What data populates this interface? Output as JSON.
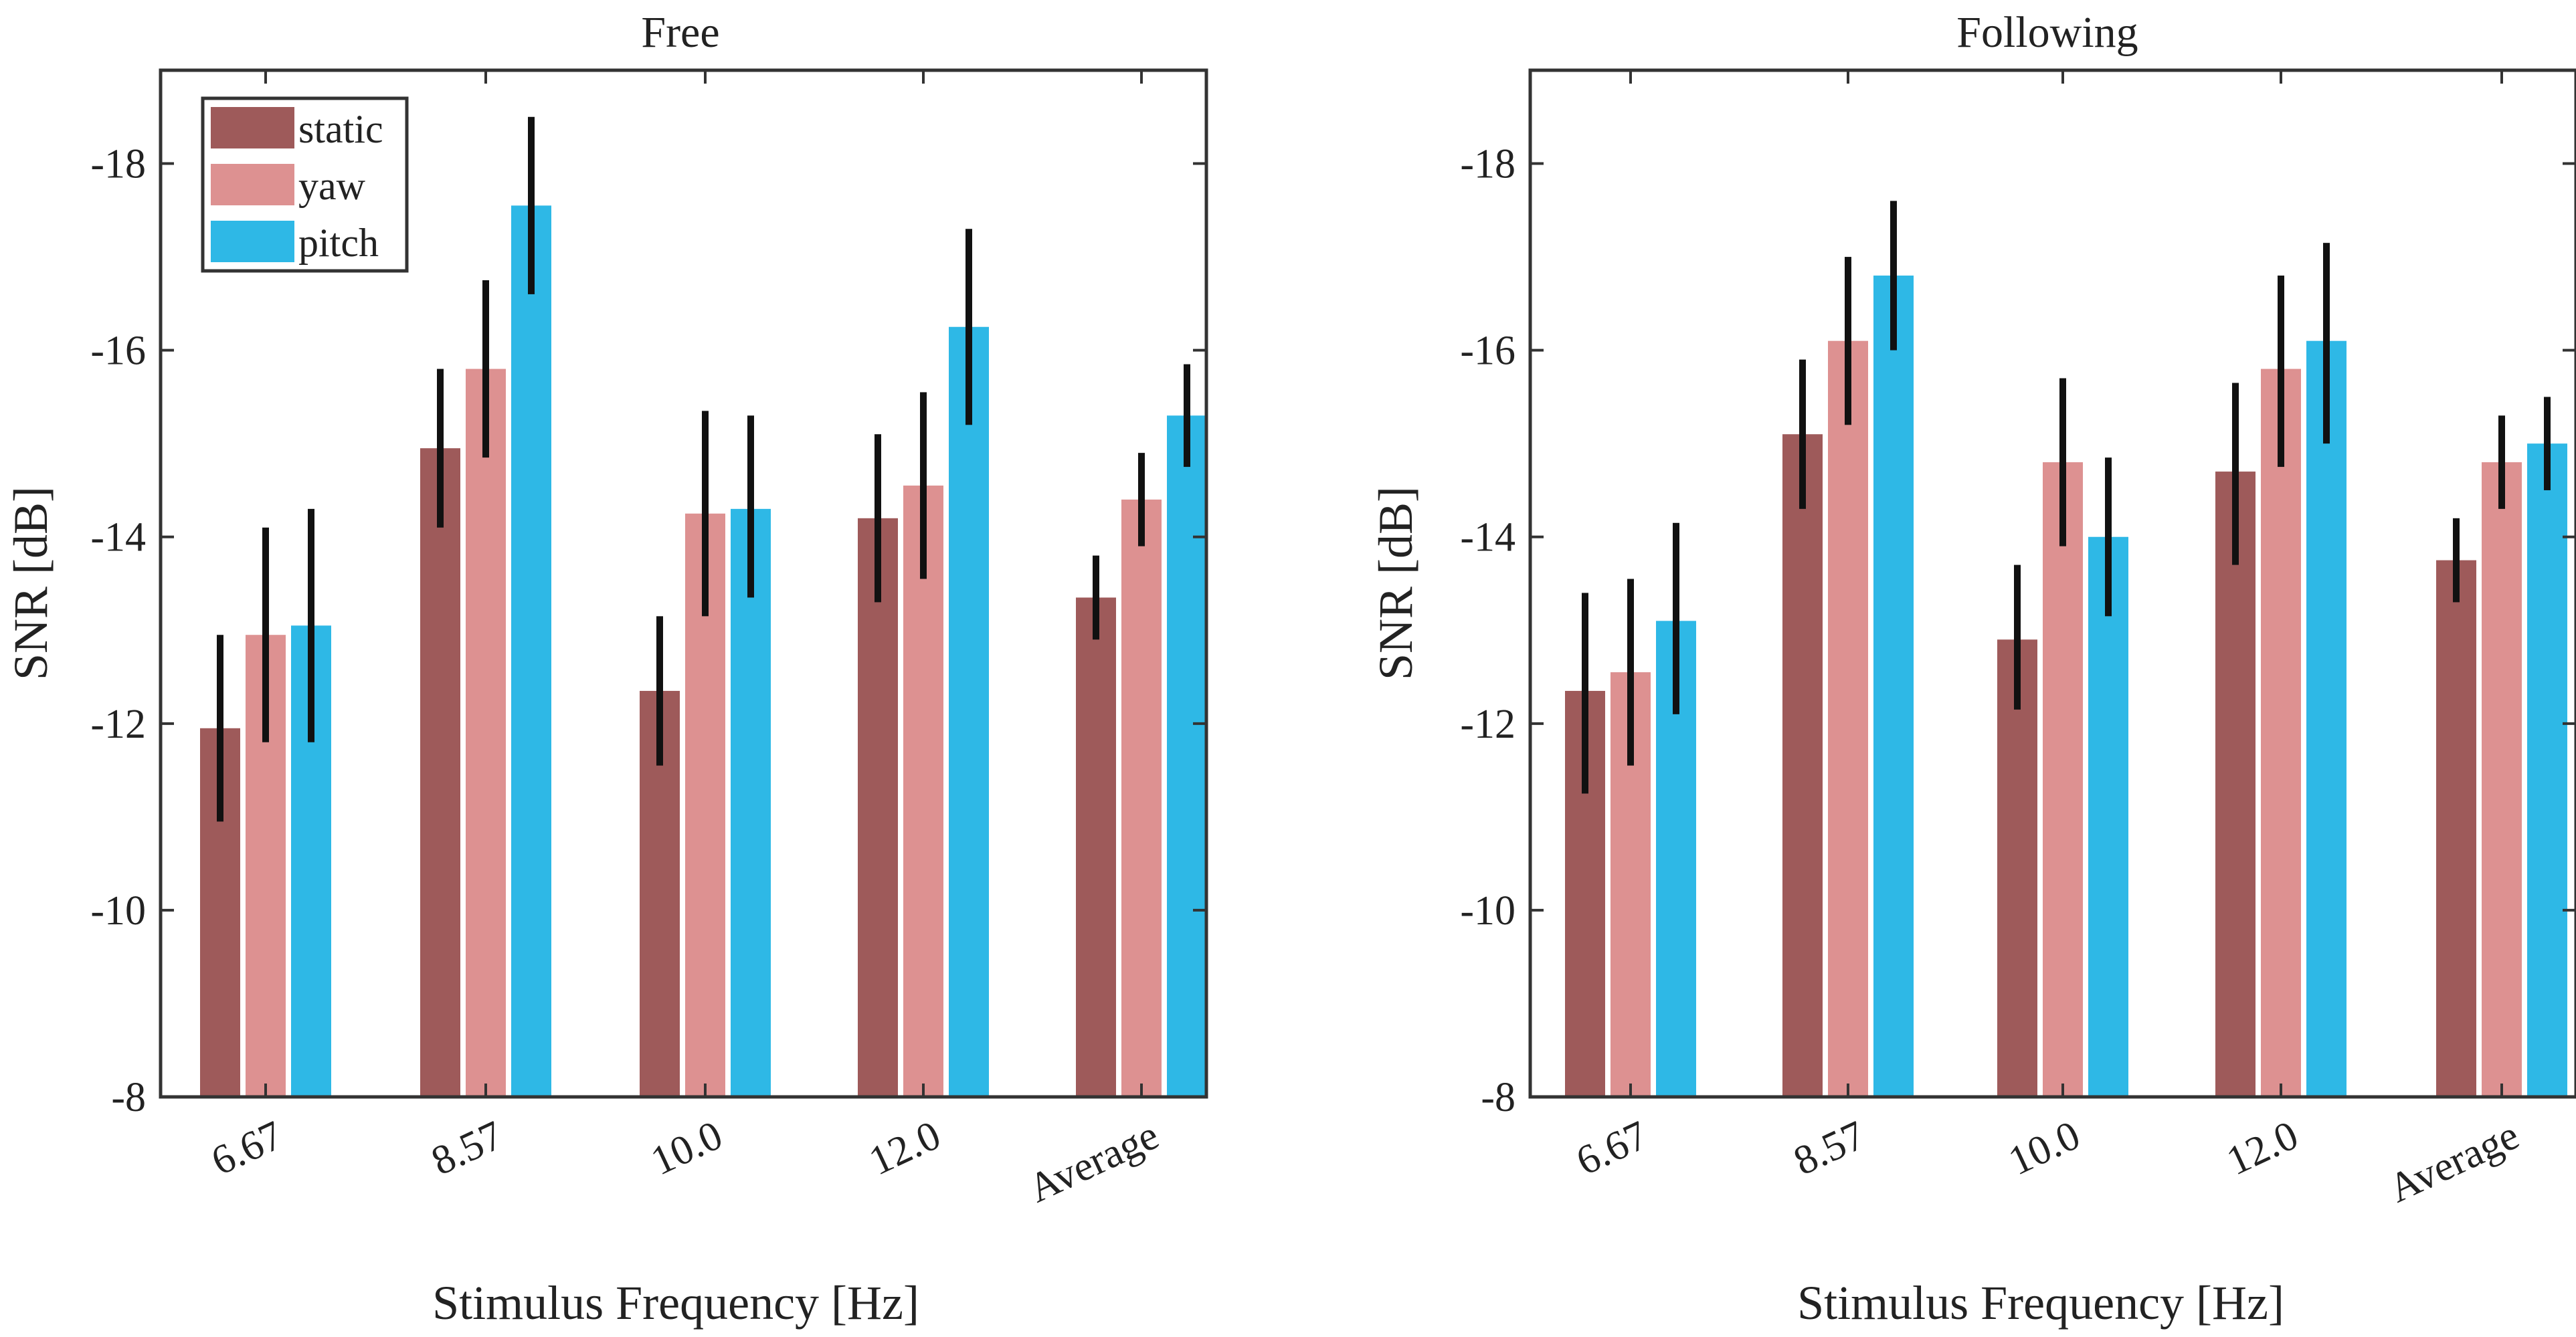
{
  "chart_data": [
    {
      "type": "bar",
      "title": "Free",
      "xlabel": "Stimulus Frequency [Hz]",
      "ylabel": "SNR [dB]",
      "categories": [
        "6.67",
        "8.57",
        "10.0",
        "12.0",
        "Average"
      ],
      "ylim": [
        -8,
        -19
      ],
      "y_ticks": [
        "-8",
        "-10",
        "-12",
        "-14",
        "-16",
        "-18"
      ],
      "y_tick_values": [
        -8,
        -10,
        -12,
        -14,
        -16,
        -18
      ],
      "legend": {
        "location": "top-left",
        "entries": [
          "static",
          "yaw",
          "pitch"
        ]
      },
      "series": [
        {
          "name": "static",
          "color": "#9E5A5A",
          "values": [
            -11.95,
            -14.95,
            -12.35,
            -14.2,
            -13.35
          ],
          "err_low": [
            -10.95,
            -14.1,
            -11.55,
            -13.3,
            -12.9
          ],
          "err_high": [
            -12.95,
            -15.8,
            -13.15,
            -15.1,
            -13.8
          ]
        },
        {
          "name": "yaw",
          "color": "#DD9191",
          "values": [
            -12.95,
            -15.8,
            -14.25,
            -14.55,
            -14.4
          ],
          "err_low": [
            -11.8,
            -14.85,
            -13.15,
            -13.55,
            -13.9
          ],
          "err_high": [
            -14.1,
            -16.75,
            -15.35,
            -15.55,
            -14.9
          ]
        },
        {
          "name": "pitch",
          "color": "#2EB8E6",
          "values": [
            -13.05,
            -17.55,
            -14.3,
            -16.25,
            -15.3
          ],
          "err_low": [
            -11.8,
            -16.6,
            -13.35,
            -15.2,
            -14.75
          ],
          "err_high": [
            -14.3,
            -18.5,
            -15.3,
            -17.3,
            -15.85
          ]
        }
      ]
    },
    {
      "type": "bar",
      "title": "Following",
      "xlabel": "Stimulus Frequency [Hz]",
      "ylabel": "SNR [dB]",
      "categories": [
        "6.67",
        "8.57",
        "10.0",
        "12.0",
        "Average"
      ],
      "ylim": [
        -8,
        -19
      ],
      "y_ticks": [
        "-8",
        "-10",
        "-12",
        "-14",
        "-16",
        "-18"
      ],
      "y_tick_values": [
        -8,
        -10,
        -12,
        -14,
        -16,
        -18
      ],
      "legend": null,
      "series": [
        {
          "name": "static",
          "color": "#9E5A5A",
          "values": [
            -12.35,
            -15.1,
            -12.9,
            -14.7,
            -13.75
          ],
          "err_low": [
            -11.25,
            -14.3,
            -12.15,
            -13.7,
            -13.3
          ],
          "err_high": [
            -13.4,
            -15.9,
            -13.7,
            -15.65,
            -14.2
          ]
        },
        {
          "name": "yaw",
          "color": "#DD9191",
          "values": [
            -12.55,
            -16.1,
            -14.8,
            -15.8,
            -14.8
          ],
          "err_low": [
            -11.55,
            -15.2,
            -13.9,
            -14.75,
            -14.3
          ],
          "err_high": [
            -13.55,
            -17.0,
            -15.7,
            -16.8,
            -15.3
          ]
        },
        {
          "name": "pitch",
          "color": "#2EB8E6",
          "values": [
            -13.1,
            -16.8,
            -14.0,
            -16.1,
            -15.0
          ],
          "err_low": [
            -12.1,
            -16.0,
            -13.15,
            -15.0,
            -14.5
          ],
          "err_high": [
            -14.15,
            -17.6,
            -14.85,
            -17.15,
            -15.5
          ]
        }
      ]
    }
  ]
}
